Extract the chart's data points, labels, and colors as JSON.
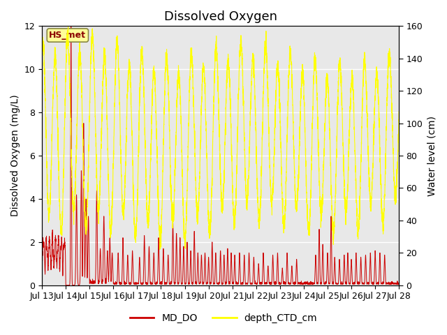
{
  "title": "Dissolved Oxygen",
  "ylabel_left": "Dissolved Oxygen (mg/L)",
  "ylabel_right": "Water level (cm)",
  "annotation_text": "HS_met",
  "annotation_bg": "#FFFF99",
  "annotation_border": "#888844",
  "ylim_left": [
    0,
    12
  ],
  "ylim_right": [
    0,
    160
  ],
  "yticks_left": [
    0,
    2,
    4,
    6,
    8,
    10,
    12
  ],
  "yticks_right": [
    0,
    20,
    40,
    60,
    80,
    100,
    120,
    140,
    160
  ],
  "xtick_labels": [
    "Jul 13",
    "Jul 14",
    "Jul 15",
    "Jul 16",
    "Jul 17",
    "Jul 18",
    "Jul 19",
    "Jul 20",
    "Jul 21",
    "Jul 22",
    "Jul 23",
    "Jul 24",
    "Jul 25",
    "Jul 26",
    "Jul 27",
    "Jul 28"
  ],
  "line1_color": "#CC0000",
  "line1_label": "MD_DO",
  "line2_color": "#FFFF00",
  "line2_label": "depth_CTD_cm",
  "bg_color": "#E8E8E8",
  "fig_bg_color": "#FFFFFF",
  "grid_color": "#FFFFFF",
  "title_fontsize": 13,
  "label_fontsize": 10,
  "tick_fontsize": 9
}
